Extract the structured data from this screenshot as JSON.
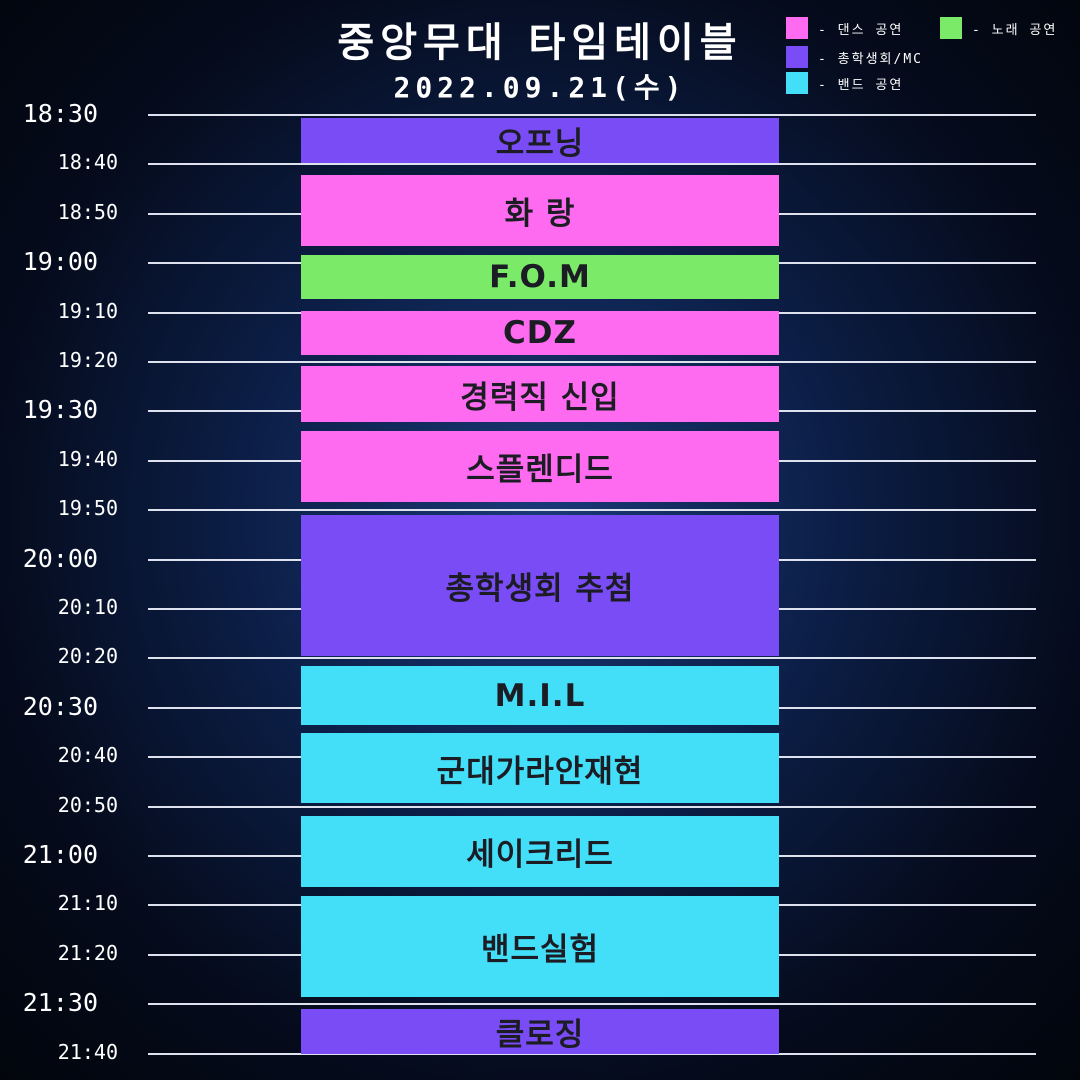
{
  "header": {
    "title": "중앙무대 타임테이블",
    "date": "2022.09.21(수)"
  },
  "legend": [
    {
      "label": "- 댄스 공연",
      "color": "#ff6bf0"
    },
    {
      "label": "- 노래 공연",
      "color": "#7bea68"
    },
    {
      "label": "- 총학생회/MC",
      "color": "#7a4cf5"
    },
    {
      "label": "- 밴드 공연",
      "color": "#43def7"
    }
  ],
  "colors": {
    "dance": "#ff6bf0",
    "song": "#7bea68",
    "council": "#7a4cf5",
    "band": "#43def7"
  },
  "time_labels": [
    "18:30",
    "18:40",
    "18:50",
    "19:00",
    "19:10",
    "19:20",
    "19:30",
    "19:40",
    "19:50",
    "20:00",
    "20:10",
    "20:20",
    "20:30",
    "20:40",
    "20:50",
    "21:00",
    "21:10",
    "21:20",
    "21:30",
    "21:40"
  ],
  "schedule": [
    {
      "name": "오프닝",
      "type": "council"
    },
    {
      "name": "화 랑",
      "type": "dance"
    },
    {
      "name": "F.O.M",
      "type": "song"
    },
    {
      "name": "CDZ",
      "type": "dance"
    },
    {
      "name": "경력직 신입",
      "type": "dance"
    },
    {
      "name": "스플렌디드",
      "type": "dance"
    },
    {
      "name": "총학생회 추첨",
      "type": "council"
    },
    {
      "name": "M.I.L",
      "type": "band"
    },
    {
      "name": "군대가라안재현",
      "type": "band"
    },
    {
      "name": "세이크리드",
      "type": "band"
    },
    {
      "name": "밴드실험",
      "type": "band"
    },
    {
      "name": "클로징",
      "type": "council"
    }
  ]
}
